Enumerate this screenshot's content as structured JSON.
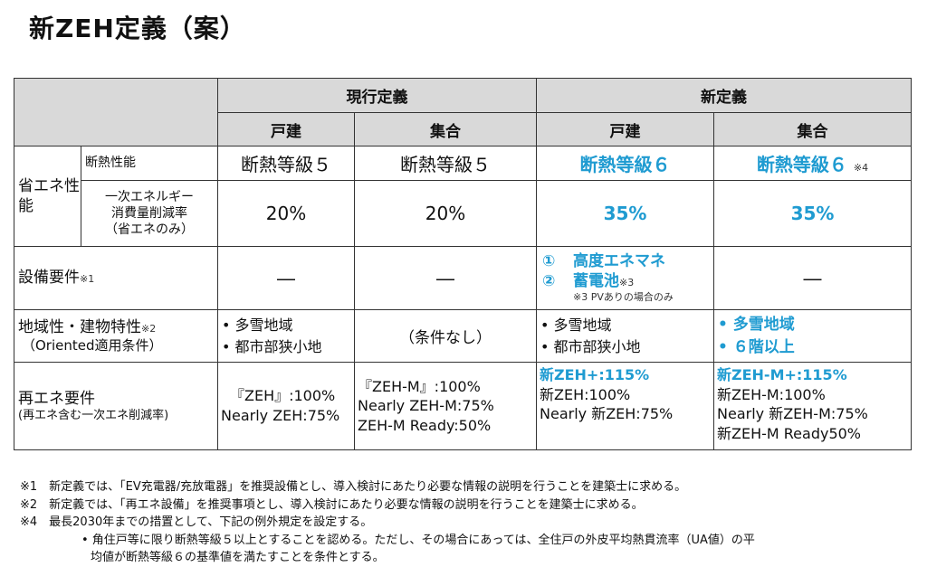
{
  "title": "新ZEH定義（案）",
  "headers": {
    "current": "現行定義",
    "new": "新定義",
    "detached": "戸建",
    "collective": "集合"
  },
  "energy": {
    "category": "省エネ性能",
    "insulation_label": "断熱性能",
    "reduction_label_1": "一次エネルギー",
    "reduction_label_2": "消費量削減率",
    "reduction_label_3": "（省エネのみ）",
    "insulation": [
      "断熱等級５",
      "断熱等級５",
      "断熱等級６",
      "断熱等級６"
    ],
    "insulation_note": "※4",
    "reduction": [
      "20%",
      "20%",
      "35%",
      "35%"
    ]
  },
  "equipment": {
    "label": "設備要件",
    "label_note": "※1",
    "cur_detached": "―",
    "cur_collective": "―",
    "new_item1_num": "①",
    "new_item1": "高度エネマネ",
    "new_item2_num": "②",
    "new_item2": "蓄電池",
    "new_item2_note": "※3",
    "new_pv_note": "※3 PVありの場合のみ",
    "new_collective": "―"
  },
  "region": {
    "label_1": "地域性・建物特性",
    "label_note": "※2",
    "label_2": "（Oriented適用条件）",
    "cur_detached": [
      "多雪地域",
      "都市部狭小地"
    ],
    "cur_collective": "（条件なし）",
    "new_detached": [
      "多雪地域",
      "都市部狭小地"
    ],
    "new_collective": [
      "多雪地域",
      "６階以上"
    ]
  },
  "renewable": {
    "label_1": "再エネ要件",
    "label_2": "(再エネ含む一次エネ削減率)",
    "cur_detached": [
      "『ZEH』:100%",
      "Nearly ZEH:75%"
    ],
    "cur_collective": [
      "『ZEH-M』:100%",
      "Nearly ZEH-M:75%",
      "ZEH-M Ready:50%"
    ],
    "new_detached_head": "新ZEH+:115%",
    "new_detached": [
      "新ZEH:100%",
      "Nearly 新ZEH:75%"
    ],
    "new_collective_head": "新ZEH-M+:115%",
    "new_collective": [
      "新ZEH-M:100%",
      "Nearly 新ZEH-M:75%",
      "新ZEH-M Ready50%"
    ]
  },
  "notes": {
    "n1": "※1　新定義では、「EV充電器/充放電器」を推奨設備とし、導入検討にあたり必要な情報の説明を行うことを建築士に求める。",
    "n2": "※2　新定義では、「再エネ設備」を推奨事項とし、導入検討にあたり必要な情報の説明を行うことを建築士に求める。",
    "n4": "※4　最長2030年までの措置として、下記の例外規定を設定する。",
    "n4_sub1": "•  角住戸等に限り断熱等級５以上とすることを認める。ただし、その場合にあっては、全住戸の外皮平均熱貫流率（UA値）の平",
    "n4_sub2": "均値が断熱等級６の基準値を満たすことを条件とする。"
  },
  "colors": {
    "accent_blue": "#1f9bd1",
    "header_gray": "#d9d9d9"
  }
}
